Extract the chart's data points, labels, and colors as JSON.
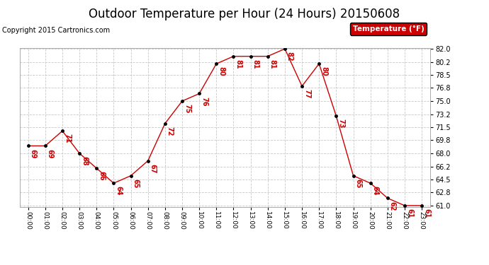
{
  "title": "Outdoor Temperature per Hour (24 Hours) 20150608",
  "copyright": "Copyright 2015 Cartronics.com",
  "legend_label": "Temperature (°F)",
  "hours": [
    0,
    1,
    2,
    3,
    4,
    5,
    6,
    7,
    8,
    9,
    10,
    11,
    12,
    13,
    14,
    15,
    16,
    17,
    18,
    19,
    20,
    21,
    22,
    23
  ],
  "temps": [
    69,
    69,
    71,
    68,
    66,
    64,
    65,
    67,
    72,
    75,
    76,
    80,
    81,
    81,
    81,
    82,
    77,
    80,
    73,
    65,
    64,
    62,
    61,
    61
  ],
  "xlabels": [
    "00:00",
    "01:00",
    "02:00",
    "03:00",
    "04:00",
    "05:00",
    "06:00",
    "07:00",
    "08:00",
    "09:00",
    "10:00",
    "11:00",
    "12:00",
    "13:00",
    "14:00",
    "15:00",
    "16:00",
    "17:00",
    "18:00",
    "19:00",
    "20:00",
    "21:00",
    "22:00",
    "23:00"
  ],
  "ylim_min": 61.0,
  "ylim_max": 82.0,
  "yticks": [
    61.0,
    62.8,
    64.5,
    66.2,
    68.0,
    69.8,
    71.5,
    73.2,
    75.0,
    76.8,
    78.5,
    80.2,
    82.0
  ],
  "line_color": "#cc0000",
  "marker_color": "#000000",
  "label_color": "#cc0000",
  "bg_color": "#ffffff",
  "grid_color": "#c8c8c8",
  "title_fontsize": 12,
  "copyright_fontsize": 7,
  "label_fontsize": 7,
  "legend_bg": "#cc0000",
  "legend_text_color": "#ffffff"
}
